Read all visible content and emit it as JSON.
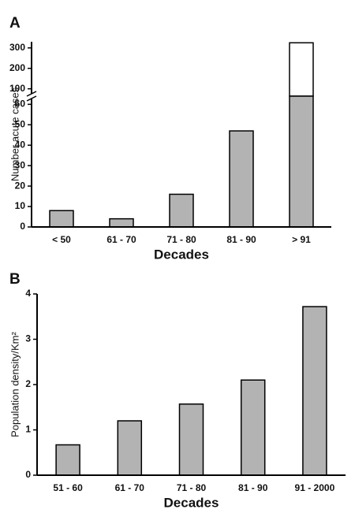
{
  "chart_data": [
    {
      "type": "bar",
      "panel_label": "A",
      "xlabel": "Decades",
      "ylabel": "Number acute cases",
      "categories": [
        "< 50",
        "61 - 70",
        "71 - 80",
        "81 - 90",
        "> 91"
      ],
      "values": [
        8,
        4,
        16,
        47,
        325
      ],
      "color": "#b3b3b3",
      "ylim": [
        0,
        330
      ],
      "ybreak": 64,
      "yticks": [
        0,
        10,
        20,
        30,
        40,
        50,
        60,
        100,
        200,
        300
      ]
    },
    {
      "type": "bar",
      "panel_label": "B",
      "xlabel": "Decades",
      "ylabel": "Population density/Km²",
      "categories": [
        "51 - 60",
        "61 - 70",
        "71 - 80",
        "81 - 90",
        "91 - 2000"
      ],
      "values": [
        0.67,
        1.2,
        1.57,
        2.1,
        3.72
      ],
      "color": "#b3b3b3",
      "ylim": [
        0,
        4
      ],
      "yticks": [
        0,
        1,
        2,
        3,
        4
      ]
    }
  ]
}
